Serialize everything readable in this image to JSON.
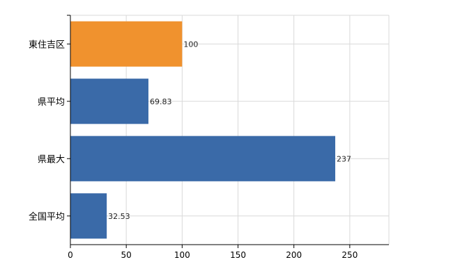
{
  "chart_data": {
    "type": "bar",
    "orientation": "horizontal",
    "categories": [
      "東住吉区",
      "県平均",
      "県最大",
      "全国平均"
    ],
    "values": [
      100,
      69.83,
      237,
      32.53
    ],
    "data_labels": [
      "100",
      "69.83",
      "237",
      "32.53"
    ],
    "x_ticks": [
      "0",
      "50",
      "100",
      "150",
      "200",
      "250"
    ],
    "xlim": [
      0,
      285
    ],
    "grid": true,
    "title": "",
    "xlabel": "",
    "ylabel": "",
    "colors": {
      "highlight": "#f0922e",
      "default": "#3a6aa8",
      "grid": "#d9d9d9",
      "axis": "#000000"
    },
    "highlight_index": 0
  }
}
